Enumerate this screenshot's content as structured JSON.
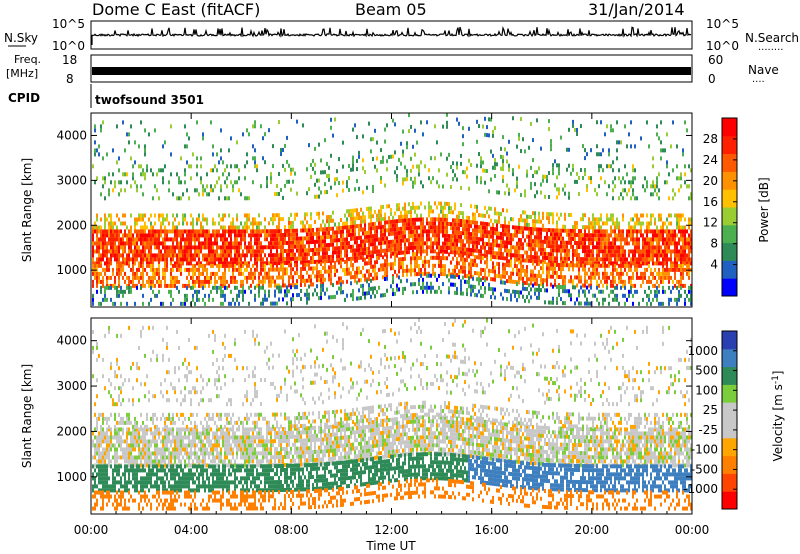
{
  "header": {
    "station": "Dome C East (fitACF)",
    "beam": "Beam 05",
    "date": "31/Jan/2014"
  },
  "strip_panels": {
    "nsky": {
      "label": "N.Sky",
      "ticks": [
        "10^5",
        "10^0"
      ],
      "right_ticks": [
        "10^5",
        "10^0"
      ],
      "right_label": "N.Search",
      "right_marker": "........"
    },
    "freq": {
      "label_line1": "Freq.",
      "label_line2": "[MHz]",
      "ticks": [
        "18",
        "8"
      ],
      "right_ticks": [
        "60",
        "0"
      ],
      "right_label": "Nave",
      "right_marker": "...."
    },
    "cpid": {
      "label": "CPID",
      "program": "twofsound 3501"
    }
  },
  "chart_data": [
    {
      "type": "heatmap",
      "name": "power",
      "ylabel": "Slant Range [km]",
      "ylim": [
        180,
        4500
      ],
      "yticks": [
        1000,
        2000,
        3000,
        4000
      ],
      "xlim_hours": [
        0,
        24
      ],
      "colorbar": {
        "label": "Power [dB]",
        "ticks": [
          "28",
          "24",
          "20",
          "16",
          "12",
          "8",
          "4"
        ],
        "colors": [
          "#0000ff",
          "#2060c0",
          "#2e8b57",
          "#4caf50",
          "#9acd32",
          "#ffc000",
          "#ff9000",
          "#ff5a00",
          "#ff2000",
          "#ff0000"
        ]
      },
      "bands": [
        {
          "range": [
            1150,
            1950
          ],
          "level": 0.85,
          "density": 0.85
        },
        {
          "range": [
            650,
            1150
          ],
          "level": 0.75,
          "density": 0.6
        },
        {
          "range": [
            1950,
            2300
          ],
          "level": 0.55,
          "density": 0.45
        },
        {
          "range": [
            2600,
            3400
          ],
          "level": 0.35,
          "density": 0.18
        },
        {
          "range": [
            3400,
            4300
          ],
          "level": 0.25,
          "density": 0.08
        },
        {
          "range": [
            250,
            650
          ],
          "level": 0.2,
          "density": 0.35
        }
      ]
    },
    {
      "type": "heatmap",
      "name": "velocity",
      "ylabel": "Slant Range [km]",
      "ylim": [
        180,
        4500
      ],
      "yticks": [
        1000,
        2000,
        3000,
        4000
      ],
      "xlim_hours": [
        0,
        24
      ],
      "colorbar": {
        "label": "Velocity [m s^-1]",
        "ticks": [
          "1000",
          "500",
          "100",
          "25",
          "-25",
          "-100",
          "-500",
          "-1000"
        ],
        "colors": [
          "#ff0000",
          "#ff4500",
          "#ff8000",
          "#ffa500",
          "#c8c8c8",
          "#c8c8c8",
          "#7ccd3c",
          "#2e8b57",
          "#3d7fbf",
          "#2a3fb0"
        ]
      },
      "bands": [
        {
          "range": [
            1250,
            2100
          ],
          "velocity": 0,
          "density": 0.8
        },
        {
          "range": [
            700,
            1250
          ],
          "velocity": -180,
          "density": 0.7
        },
        {
          "range": [
            2100,
            2400
          ],
          "velocity": 0,
          "density": 0.45
        },
        {
          "range": [
            2600,
            3400
          ],
          "velocity": 0,
          "density": 0.16
        },
        {
          "range": [
            3400,
            4300
          ],
          "velocity": 0,
          "density": 0.07
        },
        {
          "range": [
            300,
            700
          ],
          "velocity": 200,
          "density": 0.4
        }
      ]
    }
  ],
  "xaxis": {
    "ticks": [
      "00:00",
      "04:00",
      "08:00",
      "12:00",
      "16:00",
      "20:00",
      "00:00"
    ],
    "label": "Time UT"
  }
}
